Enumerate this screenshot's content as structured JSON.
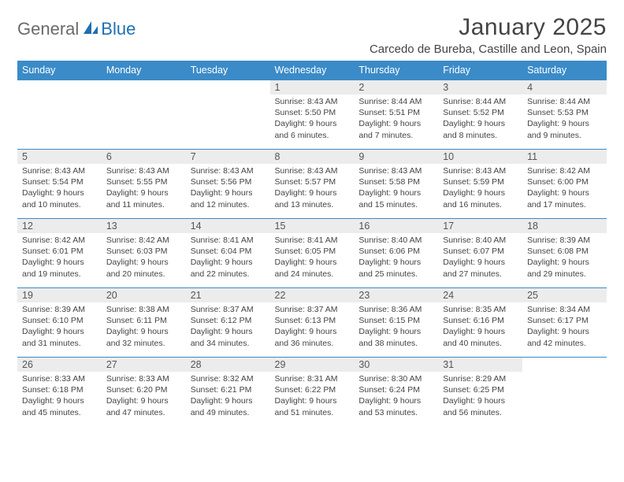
{
  "brand": {
    "general": "General",
    "blue": "Blue"
  },
  "title": "January 2025",
  "location": "Carcedo de Bureba, Castille and Leon, Spain",
  "colors": {
    "header_bg": "#3b8bc8",
    "header_text": "#ffffff",
    "border": "#3b8bc8",
    "daynum_bg": "#ececec",
    "text": "#444444",
    "logo_gray": "#6a6a6a",
    "logo_blue": "#1f6fb2"
  },
  "day_names": [
    "Sunday",
    "Monday",
    "Tuesday",
    "Wednesday",
    "Thursday",
    "Friday",
    "Saturday"
  ],
  "weeks": [
    [
      {
        "empty": true
      },
      {
        "empty": true
      },
      {
        "empty": true
      },
      {
        "num": "1",
        "sunrise": "Sunrise: 8:43 AM",
        "sunset": "Sunset: 5:50 PM",
        "daylight": "Daylight: 9 hours and 6 minutes."
      },
      {
        "num": "2",
        "sunrise": "Sunrise: 8:44 AM",
        "sunset": "Sunset: 5:51 PM",
        "daylight": "Daylight: 9 hours and 7 minutes."
      },
      {
        "num": "3",
        "sunrise": "Sunrise: 8:44 AM",
        "sunset": "Sunset: 5:52 PM",
        "daylight": "Daylight: 9 hours and 8 minutes."
      },
      {
        "num": "4",
        "sunrise": "Sunrise: 8:44 AM",
        "sunset": "Sunset: 5:53 PM",
        "daylight": "Daylight: 9 hours and 9 minutes."
      }
    ],
    [
      {
        "num": "5",
        "sunrise": "Sunrise: 8:43 AM",
        "sunset": "Sunset: 5:54 PM",
        "daylight": "Daylight: 9 hours and 10 minutes."
      },
      {
        "num": "6",
        "sunrise": "Sunrise: 8:43 AM",
        "sunset": "Sunset: 5:55 PM",
        "daylight": "Daylight: 9 hours and 11 minutes."
      },
      {
        "num": "7",
        "sunrise": "Sunrise: 8:43 AM",
        "sunset": "Sunset: 5:56 PM",
        "daylight": "Daylight: 9 hours and 12 minutes."
      },
      {
        "num": "8",
        "sunrise": "Sunrise: 8:43 AM",
        "sunset": "Sunset: 5:57 PM",
        "daylight": "Daylight: 9 hours and 13 minutes."
      },
      {
        "num": "9",
        "sunrise": "Sunrise: 8:43 AM",
        "sunset": "Sunset: 5:58 PM",
        "daylight": "Daylight: 9 hours and 15 minutes."
      },
      {
        "num": "10",
        "sunrise": "Sunrise: 8:43 AM",
        "sunset": "Sunset: 5:59 PM",
        "daylight": "Daylight: 9 hours and 16 minutes."
      },
      {
        "num": "11",
        "sunrise": "Sunrise: 8:42 AM",
        "sunset": "Sunset: 6:00 PM",
        "daylight": "Daylight: 9 hours and 17 minutes."
      }
    ],
    [
      {
        "num": "12",
        "sunrise": "Sunrise: 8:42 AM",
        "sunset": "Sunset: 6:01 PM",
        "daylight": "Daylight: 9 hours and 19 minutes."
      },
      {
        "num": "13",
        "sunrise": "Sunrise: 8:42 AM",
        "sunset": "Sunset: 6:03 PM",
        "daylight": "Daylight: 9 hours and 20 minutes."
      },
      {
        "num": "14",
        "sunrise": "Sunrise: 8:41 AM",
        "sunset": "Sunset: 6:04 PM",
        "daylight": "Daylight: 9 hours and 22 minutes."
      },
      {
        "num": "15",
        "sunrise": "Sunrise: 8:41 AM",
        "sunset": "Sunset: 6:05 PM",
        "daylight": "Daylight: 9 hours and 24 minutes."
      },
      {
        "num": "16",
        "sunrise": "Sunrise: 8:40 AM",
        "sunset": "Sunset: 6:06 PM",
        "daylight": "Daylight: 9 hours and 25 minutes."
      },
      {
        "num": "17",
        "sunrise": "Sunrise: 8:40 AM",
        "sunset": "Sunset: 6:07 PM",
        "daylight": "Daylight: 9 hours and 27 minutes."
      },
      {
        "num": "18",
        "sunrise": "Sunrise: 8:39 AM",
        "sunset": "Sunset: 6:08 PM",
        "daylight": "Daylight: 9 hours and 29 minutes."
      }
    ],
    [
      {
        "num": "19",
        "sunrise": "Sunrise: 8:39 AM",
        "sunset": "Sunset: 6:10 PM",
        "daylight": "Daylight: 9 hours and 31 minutes."
      },
      {
        "num": "20",
        "sunrise": "Sunrise: 8:38 AM",
        "sunset": "Sunset: 6:11 PM",
        "daylight": "Daylight: 9 hours and 32 minutes."
      },
      {
        "num": "21",
        "sunrise": "Sunrise: 8:37 AM",
        "sunset": "Sunset: 6:12 PM",
        "daylight": "Daylight: 9 hours and 34 minutes."
      },
      {
        "num": "22",
        "sunrise": "Sunrise: 8:37 AM",
        "sunset": "Sunset: 6:13 PM",
        "daylight": "Daylight: 9 hours and 36 minutes."
      },
      {
        "num": "23",
        "sunrise": "Sunrise: 8:36 AM",
        "sunset": "Sunset: 6:15 PM",
        "daylight": "Daylight: 9 hours and 38 minutes."
      },
      {
        "num": "24",
        "sunrise": "Sunrise: 8:35 AM",
        "sunset": "Sunset: 6:16 PM",
        "daylight": "Daylight: 9 hours and 40 minutes."
      },
      {
        "num": "25",
        "sunrise": "Sunrise: 8:34 AM",
        "sunset": "Sunset: 6:17 PM",
        "daylight": "Daylight: 9 hours and 42 minutes."
      }
    ],
    [
      {
        "num": "26",
        "sunrise": "Sunrise: 8:33 AM",
        "sunset": "Sunset: 6:18 PM",
        "daylight": "Daylight: 9 hours and 45 minutes."
      },
      {
        "num": "27",
        "sunrise": "Sunrise: 8:33 AM",
        "sunset": "Sunset: 6:20 PM",
        "daylight": "Daylight: 9 hours and 47 minutes."
      },
      {
        "num": "28",
        "sunrise": "Sunrise: 8:32 AM",
        "sunset": "Sunset: 6:21 PM",
        "daylight": "Daylight: 9 hours and 49 minutes."
      },
      {
        "num": "29",
        "sunrise": "Sunrise: 8:31 AM",
        "sunset": "Sunset: 6:22 PM",
        "daylight": "Daylight: 9 hours and 51 minutes."
      },
      {
        "num": "30",
        "sunrise": "Sunrise: 8:30 AM",
        "sunset": "Sunset: 6:24 PM",
        "daylight": "Daylight: 9 hours and 53 minutes."
      },
      {
        "num": "31",
        "sunrise": "Sunrise: 8:29 AM",
        "sunset": "Sunset: 6:25 PM",
        "daylight": "Daylight: 9 hours and 56 minutes."
      },
      {
        "empty": true
      }
    ]
  ]
}
